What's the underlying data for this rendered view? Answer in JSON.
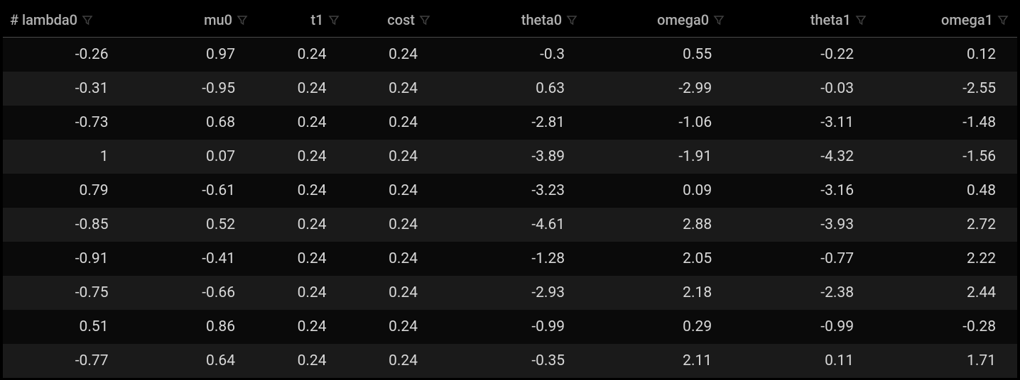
{
  "table": {
    "columns": [
      {
        "key": "lambda0",
        "label": "# lambda0",
        "align": "left"
      },
      {
        "key": "mu0",
        "label": "mu0",
        "align": "right"
      },
      {
        "key": "t1",
        "label": "t1",
        "align": "right"
      },
      {
        "key": "cost",
        "label": "cost",
        "align": "right"
      },
      {
        "key": "theta0",
        "label": "theta0",
        "align": "right"
      },
      {
        "key": "omega0",
        "label": "omega0",
        "align": "right"
      },
      {
        "key": "theta1",
        "label": "theta1",
        "align": "right"
      },
      {
        "key": "omega1",
        "label": "omega1",
        "align": "right"
      }
    ],
    "rows": [
      [
        "-0.26",
        "0.97",
        "0.24",
        "0.24",
        "-0.3",
        "0.55",
        "-0.22",
        "0.12"
      ],
      [
        "-0.31",
        "-0.95",
        "0.24",
        "0.24",
        "0.63",
        "-2.99",
        "-0.03",
        "-2.55"
      ],
      [
        "-0.73",
        "0.68",
        "0.24",
        "0.24",
        "-2.81",
        "-1.06",
        "-3.11",
        "-1.48"
      ],
      [
        "1",
        "0.07",
        "0.24",
        "0.24",
        "-3.89",
        "-1.91",
        "-4.32",
        "-1.56"
      ],
      [
        "0.79",
        "-0.61",
        "0.24",
        "0.24",
        "-3.23",
        "0.09",
        "-3.16",
        "0.48"
      ],
      [
        "-0.85",
        "0.52",
        "0.24",
        "0.24",
        "-4.61",
        "2.88",
        "-3.93",
        "2.72"
      ],
      [
        "-0.91",
        "-0.41",
        "0.24",
        "0.24",
        "-1.28",
        "2.05",
        "-0.77",
        "2.22"
      ],
      [
        "-0.75",
        "-0.66",
        "0.24",
        "0.24",
        "-2.93",
        "2.18",
        "-2.38",
        "2.44"
      ],
      [
        "0.51",
        "0.86",
        "0.24",
        "0.24",
        "-0.99",
        "0.29",
        "-0.99",
        "-0.28"
      ],
      [
        "-0.77",
        "0.64",
        "0.24",
        "0.24",
        "-0.35",
        "2.11",
        "0.11",
        "1.71"
      ]
    ],
    "styling": {
      "background_color": "#000000",
      "row_odd_bg": "#0a0a0a",
      "row_even_bg": "#1a1a1a",
      "header_text_color": "#b0b0b0",
      "cell_text_color": "#d8d8d8",
      "header_border_color": "#4a4a4a",
      "filter_icon_color": "#808080",
      "header_fontsize": 20,
      "cell_fontsize": 21,
      "font_family": "-apple-system"
    }
  }
}
